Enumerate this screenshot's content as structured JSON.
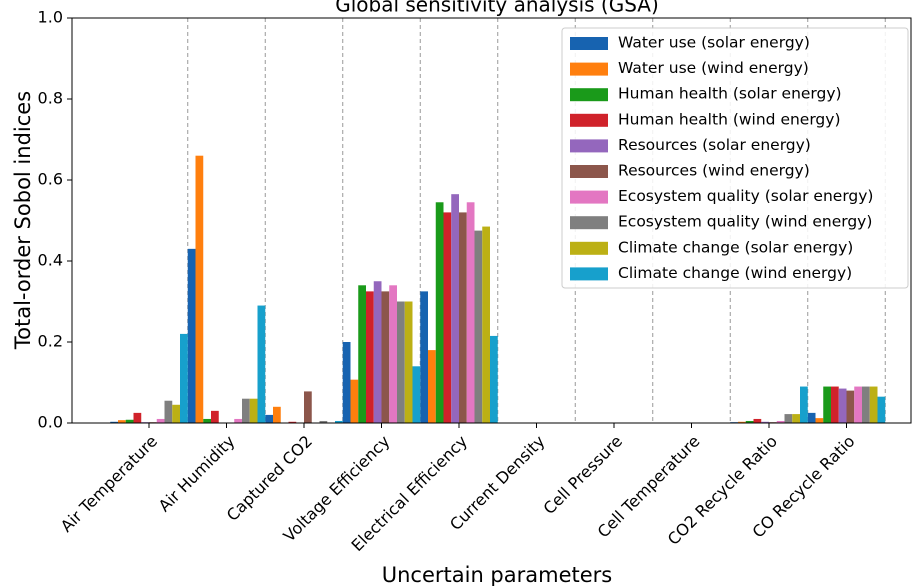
{
  "chart_data": {
    "type": "bar",
    "title": "Global sensitivity analysis (GSA)",
    "x_label": "Uncertain parameters",
    "y_label": "Total-order Sobol indices",
    "categories": [
      "Air Temperature",
      "Air Humidity",
      "Captured CO2",
      "Voltage Efficiency",
      "Electrical Efficiency",
      "Current Density",
      "Cell Pressure",
      "Cell Temperature",
      "CO2 Recycle Ratio",
      "CO Recycle Ratio"
    ],
    "series": [
      {
        "name": "Water use (solar energy)",
        "color": "#1763b0",
        "values": [
          0.003,
          0.43,
          0.02,
          0.2,
          0.325,
          0,
          0,
          0,
          0.002,
          0.025
        ]
      },
      {
        "name": "Water use (wind energy)",
        "color": "#ff7f0e",
        "values": [
          0.007,
          0.66,
          0.04,
          0.107,
          0.18,
          0,
          0,
          0,
          0.003,
          0.012
        ]
      },
      {
        "name": "Human health (solar energy)",
        "color": "#1a9a1a",
        "values": [
          0.008,
          0.01,
          0,
          0.34,
          0.545,
          0,
          0,
          0,
          0.005,
          0.09
        ]
      },
      {
        "name": "Human health (wind energy)",
        "color": "#d0222a",
        "values": [
          0.025,
          0.03,
          0.003,
          0.325,
          0.52,
          0,
          0,
          0,
          0.01,
          0.09
        ]
      },
      {
        "name": "Resources (solar energy)",
        "color": "#9467bd",
        "values": [
          0.002,
          0,
          0,
          0.35,
          0.565,
          0,
          0,
          0,
          0.003,
          0.085
        ]
      },
      {
        "name": "Resources (wind energy)",
        "color": "#8c564b",
        "values": [
          0.002,
          0,
          0.078,
          0.325,
          0.52,
          0,
          0,
          0,
          0.002,
          0.08
        ]
      },
      {
        "name": "Ecosystem quality (solar energy)",
        "color": "#e377c2",
        "values": [
          0.01,
          0.01,
          0,
          0.34,
          0.545,
          0,
          0,
          0,
          0.005,
          0.09
        ]
      },
      {
        "name": "Ecosystem quality (wind energy)",
        "color": "#7f7f7f",
        "values": [
          0.055,
          0.06,
          0.005,
          0.3,
          0.475,
          0,
          0,
          0,
          0.022,
          0.09
        ]
      },
      {
        "name": "Climate change (solar energy)",
        "color": "#bcb015",
        "values": [
          0.045,
          0.06,
          0,
          0.3,
          0.485,
          0,
          0,
          0,
          0.022,
          0.09
        ]
      },
      {
        "name": "Climate change (wind energy)",
        "color": "#17a0cc",
        "values": [
          0.22,
          0.29,
          0.005,
          0.14,
          0.215,
          0,
          0,
          0,
          0.09,
          0.065
        ]
      }
    ],
    "ylim": [
      0,
      1
    ],
    "yticks": [
      {
        "value": 0,
        "label": "0.0"
      },
      {
        "value": 0.2,
        "label": "0.2"
      },
      {
        "value": 0.4,
        "label": "0.4"
      },
      {
        "value": 0.6,
        "label": "0.6"
      },
      {
        "value": 0.8,
        "label": "0.8"
      },
      {
        "value": 1,
        "label": "1.0"
      }
    ],
    "legend": "upper right"
  }
}
